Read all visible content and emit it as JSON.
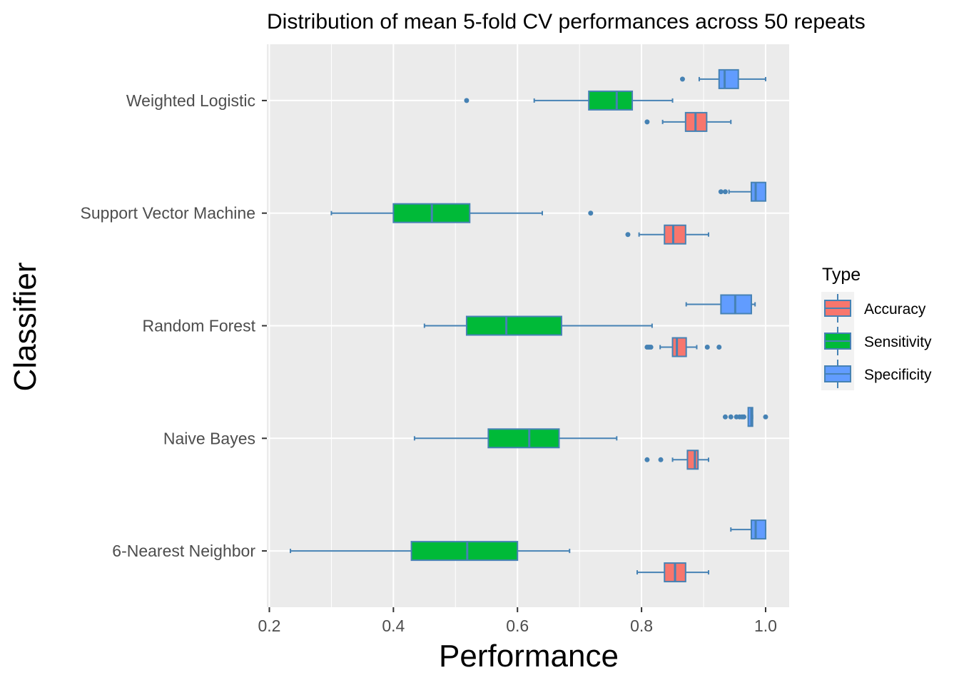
{
  "chart_data": {
    "type": "boxplot",
    "orientation": "horizontal",
    "title": "Distribution of mean 5-fold CV performances across 50 repeats",
    "xlabel": "Performance",
    "ylabel": "Classifier",
    "xlim": [
      0.196,
      1.038
    ],
    "x_ticks": [
      "0.2",
      "0.4",
      "0.6",
      "0.8",
      "1.0"
    ],
    "x_tick_values": [
      0.2,
      0.4,
      0.6,
      0.8,
      1.0
    ],
    "grid": true,
    "panel_background": "#ebebeb",
    "box_outline_color": "#4682b4",
    "categories": [
      "Weighted Logistic",
      "Support Vector Machine",
      "Random Forest",
      "Naive Bayes",
      "6-Nearest Neighbor"
    ],
    "legend": {
      "title": "Type",
      "position": "right",
      "entries": [
        {
          "label": "Accuracy",
          "color": "#f8766d"
        },
        {
          "label": "Sensitivity",
          "color": "#00ba38"
        },
        {
          "label": "Specificity",
          "color": "#619cff"
        }
      ]
    },
    "series": [
      {
        "name": "Accuracy",
        "color": "#f8766d",
        "boxes": [
          {
            "category": "Weighted Logistic",
            "whisker_low": 0.834,
            "q1": 0.871,
            "median": 0.887,
            "q3": 0.905,
            "whisker_high": 0.944,
            "outliers": [
              0.809
            ]
          },
          {
            "category": "Support Vector Machine",
            "whisker_low": 0.796,
            "q1": 0.837,
            "median": 0.851,
            "q3": 0.871,
            "whisker_high": 0.908,
            "outliers": [
              0.778
            ]
          },
          {
            "category": "Random Forest",
            "whisker_low": 0.83,
            "q1": 0.85,
            "median": 0.857,
            "q3": 0.872,
            "whisker_high": 0.889,
            "outliers": [
              0.809,
              0.812,
              0.815,
              0.906,
              0.925
            ]
          },
          {
            "category": "Naive Bayes",
            "whisker_low": 0.85,
            "q1": 0.874,
            "median": 0.886,
            "q3": 0.891,
            "whisker_high": 0.908,
            "outliers": [
              0.809,
              0.831
            ]
          },
          {
            "category": "6-Nearest Neighbor",
            "whisker_low": 0.793,
            "q1": 0.837,
            "median": 0.854,
            "q3": 0.871,
            "whisker_high": 0.908,
            "outliers": []
          }
        ]
      },
      {
        "name": "Sensitivity",
        "color": "#00ba38",
        "boxes": [
          {
            "category": "Weighted Logistic",
            "whisker_low": 0.627,
            "q1": 0.715,
            "median": 0.76,
            "q3": 0.785,
            "whisker_high": 0.85,
            "outliers": [
              0.518
            ]
          },
          {
            "category": "Support Vector Machine",
            "whisker_low": 0.3,
            "q1": 0.4,
            "median": 0.462,
            "q3": 0.523,
            "whisker_high": 0.64,
            "outliers": [
              0.718
            ]
          },
          {
            "category": "Random Forest",
            "whisker_low": 0.45,
            "q1": 0.518,
            "median": 0.582,
            "q3": 0.671,
            "whisker_high": 0.817,
            "outliers": []
          },
          {
            "category": "Naive Bayes",
            "whisker_low": 0.434,
            "q1": 0.553,
            "median": 0.619,
            "q3": 0.667,
            "whisker_high": 0.76,
            "outliers": []
          },
          {
            "category": "6-Nearest Neighbor",
            "whisker_low": 0.234,
            "q1": 0.429,
            "median": 0.519,
            "q3": 0.6,
            "whisker_high": 0.684,
            "outliers": []
          }
        ]
      },
      {
        "name": "Specificity",
        "color": "#619cff",
        "boxes": [
          {
            "category": "Weighted Logistic",
            "whisker_low": 0.893,
            "q1": 0.925,
            "median": 0.934,
            "q3": 0.956,
            "whisker_high": 1.0,
            "outliers": [
              0.866
            ]
          },
          {
            "category": "Support Vector Machine",
            "whisker_low": 0.941,
            "q1": 0.977,
            "median": 0.984,
            "q3": 1.0,
            "whisker_high": 1.0,
            "outliers": [
              0.928,
              0.935
            ]
          },
          {
            "category": "Random Forest",
            "whisker_low": 0.872,
            "q1": 0.928,
            "median": 0.951,
            "q3": 0.977,
            "whisker_high": 0.983,
            "outliers": []
          },
          {
            "category": "Naive Bayes",
            "whisker_low": 0.972,
            "q1": 0.972,
            "median": 0.977,
            "q3": 0.979,
            "whisker_high": 0.979,
            "outliers": [
              0.935,
              0.944,
              0.953,
              0.958,
              0.962,
              0.965,
              1.0
            ]
          },
          {
            "category": "6-Nearest Neighbor",
            "whisker_low": 0.944,
            "q1": 0.977,
            "median": 0.984,
            "q3": 1.0,
            "whisker_high": 1.0,
            "outliers": []
          }
        ]
      }
    ]
  }
}
